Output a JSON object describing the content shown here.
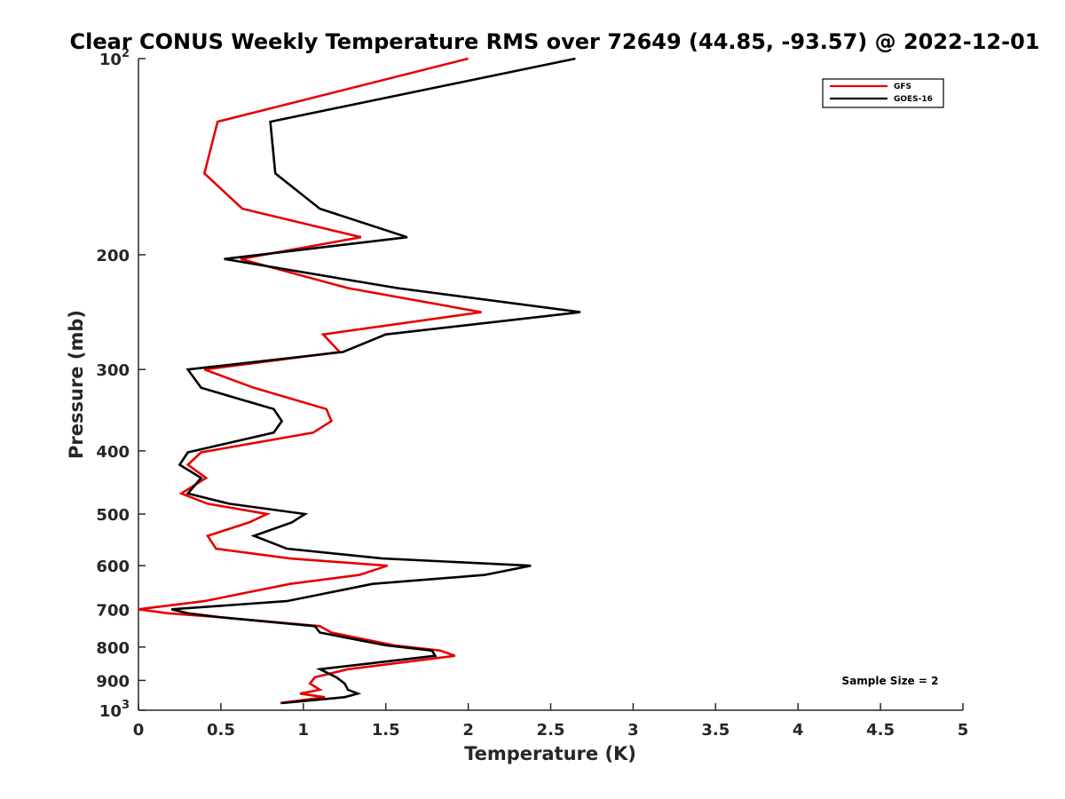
{
  "chart_data": {
    "type": "line",
    "title": "Clear CONUS Weekly Temperature RMS over 72649 (44.85, -93.57) @ 2022-12-01",
    "xlabel": "Temperature (K)",
    "ylabel": "Pressure (mb)",
    "xlim": [
      0,
      5
    ],
    "ylim": [
      1000,
      100
    ],
    "y_scale": "log",
    "y_reversed": true,
    "grid": false,
    "legend_position": "top-right",
    "x_ticks": [
      {
        "value": 0,
        "label": "0"
      },
      {
        "value": 0.5,
        "label": "0.5"
      },
      {
        "value": 1,
        "label": "1"
      },
      {
        "value": 1.5,
        "label": "1.5"
      },
      {
        "value": 2,
        "label": "2"
      },
      {
        "value": 2.5,
        "label": "2.5"
      },
      {
        "value": 3,
        "label": "3"
      },
      {
        "value": 3.5,
        "label": "3.5"
      },
      {
        "value": 4,
        "label": "4"
      },
      {
        "value": 4.5,
        "label": "4.5"
      },
      {
        "value": 5,
        "label": "5"
      }
    ],
    "y_ticks": [
      {
        "value": 100,
        "base": "10",
        "exp": "2"
      },
      {
        "value": 200,
        "label": "200"
      },
      {
        "value": 300,
        "label": "300"
      },
      {
        "value": 400,
        "label": "400"
      },
      {
        "value": 500,
        "label": "500"
      },
      {
        "value": 600,
        "label": "600"
      },
      {
        "value": 700,
        "label": "700"
      },
      {
        "value": 800,
        "label": "800"
      },
      {
        "value": 900,
        "label": "900"
      },
      {
        "value": 1000,
        "base": "10",
        "exp": "3"
      }
    ],
    "series": [
      {
        "name": "GFS",
        "color": "#e60000",
        "points": [
          [
            2.0,
            100
          ],
          [
            0.48,
            125
          ],
          [
            0.4,
            150
          ],
          [
            0.63,
            170
          ],
          [
            1.35,
            188
          ],
          [
            0.62,
            203
          ],
          [
            1.27,
            225
          ],
          [
            2.08,
            245
          ],
          [
            1.12,
            265
          ],
          [
            1.22,
            282
          ],
          [
            0.4,
            300
          ],
          [
            0.7,
            320
          ],
          [
            1.14,
            345
          ],
          [
            1.17,
            360
          ],
          [
            1.06,
            375
          ],
          [
            0.38,
            402
          ],
          [
            0.3,
            420
          ],
          [
            0.41,
            440
          ],
          [
            0.26,
            465
          ],
          [
            0.42,
            482
          ],
          [
            0.78,
            500
          ],
          [
            0.67,
            515
          ],
          [
            0.42,
            540
          ],
          [
            0.47,
            565
          ],
          [
            0.92,
            585
          ],
          [
            1.51,
            600
          ],
          [
            1.34,
            620
          ],
          [
            0.92,
            640
          ],
          [
            0.4,
            680
          ],
          [
            0.0,
            700
          ],
          [
            0.18,
            710
          ],
          [
            0.5,
            720
          ],
          [
            1.1,
            743
          ],
          [
            1.17,
            760
          ],
          [
            1.55,
            795
          ],
          [
            1.83,
            810
          ],
          [
            1.92,
            825
          ],
          [
            1.27,
            865
          ],
          [
            1.07,
            890
          ],
          [
            1.04,
            910
          ],
          [
            1.1,
            930
          ],
          [
            0.98,
            943
          ],
          [
            1.13,
            955
          ],
          [
            0.86,
            975
          ]
        ]
      },
      {
        "name": "GOES-16",
        "color": "#000000",
        "points": [
          [
            2.65,
            100
          ],
          [
            0.8,
            125
          ],
          [
            0.83,
            150
          ],
          [
            1.1,
            170
          ],
          [
            1.63,
            188
          ],
          [
            0.52,
            203
          ],
          [
            1.57,
            225
          ],
          [
            2.68,
            245
          ],
          [
            1.5,
            265
          ],
          [
            1.24,
            282
          ],
          [
            0.3,
            300
          ],
          [
            0.38,
            320
          ],
          [
            0.82,
            345
          ],
          [
            0.87,
            360
          ],
          [
            0.82,
            375
          ],
          [
            0.3,
            402
          ],
          [
            0.25,
            420
          ],
          [
            0.38,
            440
          ],
          [
            0.3,
            465
          ],
          [
            0.55,
            482
          ],
          [
            1.01,
            500
          ],
          [
            0.93,
            515
          ],
          [
            0.7,
            540
          ],
          [
            0.9,
            565
          ],
          [
            1.48,
            585
          ],
          [
            2.38,
            600
          ],
          [
            2.1,
            620
          ],
          [
            1.42,
            640
          ],
          [
            0.9,
            680
          ],
          [
            0.2,
            700
          ],
          [
            0.3,
            710
          ],
          [
            0.5,
            720
          ],
          [
            1.07,
            743
          ],
          [
            1.1,
            760
          ],
          [
            1.5,
            795
          ],
          [
            1.78,
            810
          ],
          [
            1.8,
            825
          ],
          [
            1.1,
            865
          ],
          [
            1.2,
            890
          ],
          [
            1.25,
            910
          ],
          [
            1.27,
            930
          ],
          [
            1.33,
            943
          ],
          [
            1.25,
            955
          ],
          [
            0.87,
            975
          ]
        ]
      }
    ],
    "annotation": "Sample Size = 2"
  }
}
